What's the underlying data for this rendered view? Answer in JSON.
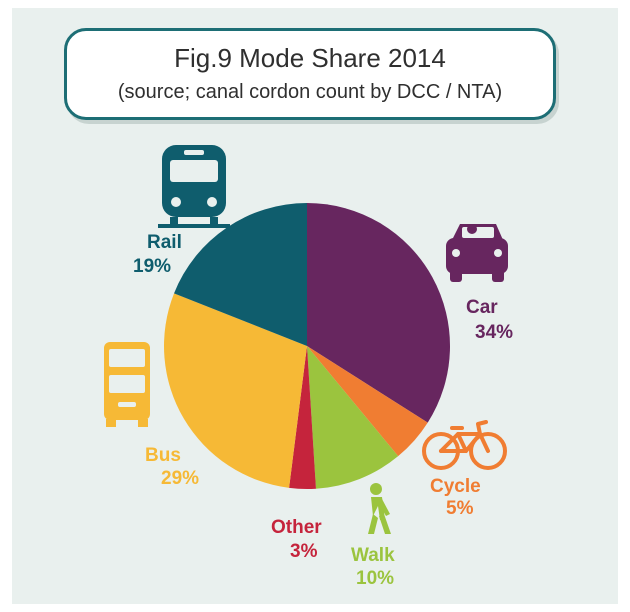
{
  "title": "Fig.9 Mode Share 2014",
  "subtitle": "(source; canal cordon count by DCC / NTA)",
  "chart_data": {
    "type": "pie",
    "title": "Fig.9 Mode Share 2014",
    "subtitle": "(source; canal cordon count by DCC / NTA)",
    "slices": [
      {
        "label": "Car",
        "value": 34,
        "value_label": "34%",
        "color": "#67265f",
        "icon": "car-icon"
      },
      {
        "label": "Cycle",
        "value": 5,
        "value_label": "5%",
        "color": "#f07d32",
        "icon": "bicycle-icon"
      },
      {
        "label": "Walk",
        "value": 10,
        "value_label": "10%",
        "color": "#9bc43e",
        "icon": "walking-person-icon"
      },
      {
        "label": "Other",
        "value": 3,
        "value_label": "3%",
        "color": "#c5243c",
        "icon": ""
      },
      {
        "label": "Bus",
        "value": 29,
        "value_label": "29%",
        "color": "#f6b936",
        "icon": "bus-icon"
      },
      {
        "label": "Rail",
        "value": 19,
        "value_label": "19%",
        "color": "#0f5d6d",
        "icon": "train-icon"
      }
    ]
  }
}
